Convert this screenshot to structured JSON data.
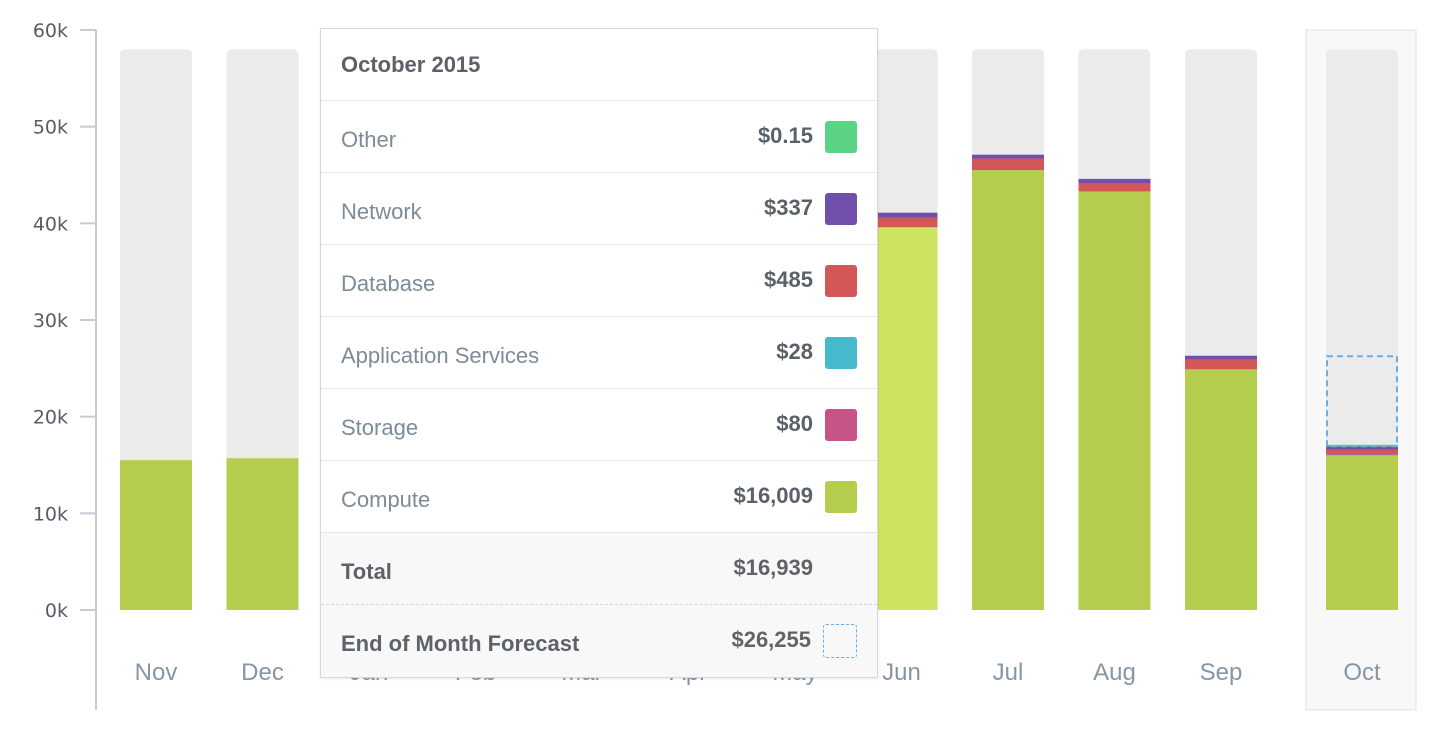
{
  "chart_data": {
    "type": "bar",
    "stacked": true,
    "categories": [
      "Nov",
      "Dec",
      "Jan",
      "Feb",
      "Mar",
      "Apr",
      "May",
      "Jun",
      "Jul",
      "Aug",
      "Sep",
      "Oct"
    ],
    "ylim": [
      0,
      60000
    ],
    "yticks": [
      0,
      10000,
      20000,
      30000,
      40000,
      50000,
      60000
    ],
    "ytick_labels": [
      "0k",
      "10k",
      "20k",
      "30k",
      "40k",
      "50k",
      "60k"
    ],
    "series": [
      {
        "name": "Compute",
        "color": "#b4cd4c",
        "values": [
          15500,
          15700,
          null,
          null,
          null,
          null,
          null,
          39600,
          45500,
          43300,
          24900,
          16009
        ]
      },
      {
        "name": "Storage",
        "color": "#c75488",
        "values": [
          0,
          0,
          null,
          null,
          null,
          null,
          null,
          0,
          0,
          0,
          0,
          80
        ]
      },
      {
        "name": "Application Services",
        "color": "#47b9cd",
        "values": [
          0,
          0,
          null,
          null,
          null,
          null,
          null,
          0,
          0,
          0,
          0,
          28
        ]
      },
      {
        "name": "Database",
        "color": "#d45757",
        "values": [
          0,
          0,
          null,
          null,
          null,
          null,
          null,
          1000,
          1200,
          800,
          1000,
          485
        ]
      },
      {
        "name": "Network",
        "color": "#7150ab",
        "values": [
          0,
          0,
          null,
          null,
          null,
          null,
          null,
          500,
          400,
          500,
          400,
          337
        ]
      },
      {
        "name": "Other",
        "color": "#5ad484",
        "values": [
          0,
          0,
          null,
          null,
          null,
          null,
          null,
          0,
          0,
          0,
          0,
          0.15
        ]
      }
    ],
    "forecast": {
      "category": "Oct",
      "value": 26255,
      "color": "#6aaee8"
    },
    "highlighted_category": "Oct",
    "hovered_category": "Jun",
    "grid": false,
    "background_bar_max": 58000,
    "background_bar_color": "#ebebeb"
  },
  "tooltip": {
    "title": "October 2015",
    "rows": [
      {
        "label": "Other",
        "value": "$0.15",
        "color": "#5ad484"
      },
      {
        "label": "Network",
        "value": "$337",
        "color": "#7150ab"
      },
      {
        "label": "Database",
        "value": "$485",
        "color": "#d45757"
      },
      {
        "label": "Application Services",
        "value": "$28",
        "color": "#47b9cd"
      },
      {
        "label": "Storage",
        "value": "$80",
        "color": "#c75488"
      },
      {
        "label": "Compute",
        "value": "$16,009",
        "color": "#b4cd4c"
      }
    ],
    "total": {
      "label": "Total",
      "value": "$16,939"
    },
    "forecast": {
      "label": "End of Month Forecast",
      "value": "$26,255"
    }
  }
}
